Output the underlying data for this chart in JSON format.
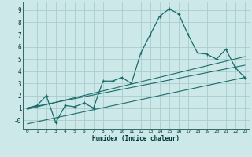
{
  "xlabel": "Humidex (Indice chaleur)",
  "bg_color": "#cce8e8",
  "grid_color": "#aacccc",
  "line_color": "#1a6b6b",
  "xlim": [
    -0.5,
    23.5
  ],
  "ylim": [
    -0.7,
    9.7
  ],
  "xticks": [
    0,
    1,
    2,
    3,
    4,
    5,
    6,
    7,
    8,
    9,
    10,
    11,
    12,
    13,
    14,
    15,
    16,
    17,
    18,
    19,
    20,
    21,
    22,
    23
  ],
  "yticks": [
    0,
    1,
    2,
    3,
    4,
    5,
    6,
    7,
    8,
    9
  ],
  "ytick_labels": [
    "-0",
    "1",
    "2",
    "3",
    "4",
    "5",
    "6",
    "7",
    "8",
    "9"
  ],
  "main_x": [
    0,
    1,
    2,
    3,
    4,
    5,
    6,
    7,
    8,
    9,
    10,
    11,
    12,
    13,
    14,
    15,
    16,
    17,
    18,
    19,
    20,
    21,
    22,
    23
  ],
  "main_y": [
    1.0,
    1.2,
    2.0,
    -0.2,
    1.2,
    1.1,
    1.4,
    1.0,
    3.2,
    3.2,
    3.5,
    3.0,
    5.5,
    7.0,
    8.5,
    9.1,
    8.7,
    7.0,
    5.5,
    5.4,
    5.0,
    5.8,
    4.3,
    3.5
  ],
  "line1_x": [
    0,
    23
  ],
  "line1_y": [
    1.0,
    4.5
  ],
  "line2_x": [
    0,
    23
  ],
  "line2_y": [
    0.9,
    5.2
  ],
  "line3_x": [
    0,
    23
  ],
  "line3_y": [
    -0.3,
    3.5
  ]
}
